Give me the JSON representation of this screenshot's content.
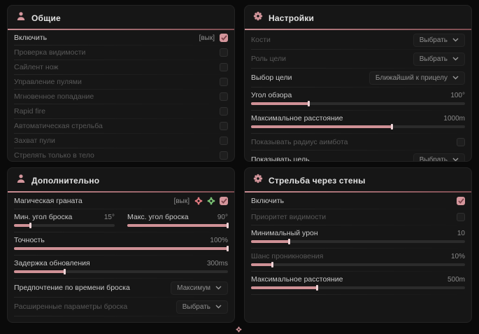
{
  "colors": {
    "accent": "#d4969c",
    "panel_bg": "#161616",
    "page_bg": "#0a0a0a",
    "green_icon": "#7cc576",
    "red_icon": "#e57b82"
  },
  "panels": {
    "general": {
      "title": "Общие",
      "icon": "users-icon",
      "rows": [
        {
          "label": "Включить",
          "hint": "[вык]",
          "checked": true
        },
        {
          "label": "Проверка видимости",
          "checked": false
        },
        {
          "label": "Сайлент нож",
          "checked": false
        },
        {
          "label": "Управление пулями",
          "checked": false
        },
        {
          "label": "Мгновенное попадание",
          "checked": false
        },
        {
          "label": "Rapid fire",
          "checked": false
        },
        {
          "label": "Автоматическая стрельба",
          "checked": false
        },
        {
          "label": "Захват пули",
          "checked": false
        },
        {
          "label": "Стрелять только в тело",
          "checked": false
        }
      ]
    },
    "settings": {
      "title": "Настройки",
      "icon": "gear-icon",
      "rows": [
        {
          "label": "Кости",
          "value": "Выбрать"
        },
        {
          "label": "Роль цели",
          "value": "Выбрать"
        },
        {
          "label": "Выбор цели",
          "value": "Ближайший к прицелу"
        },
        {
          "label": "Угол обзора",
          "value": "100°",
          "pct": 27
        },
        {
          "label": "Максимальное расстояние",
          "value": "1000m",
          "pct": 66
        },
        {
          "label": "Показывать радиус аимбота",
          "checked": false
        },
        {
          "label": "Показывать цель",
          "value": "Выбрать"
        }
      ]
    },
    "additional": {
      "title": "Дополнительно",
      "icon": "users-icon",
      "rows": [
        {
          "label": "Магическая граната",
          "hint": "[вык]",
          "checked": true,
          "icons": [
            "red-flower-icon",
            "green-flower-icon"
          ]
        },
        {
          "label": "Мин. угол броска",
          "value": "15°",
          "pct": 17
        },
        {
          "label": "Макс. угол броска",
          "value": "90°",
          "pct": 100
        },
        {
          "label": "Точность",
          "value": "100%",
          "pct": 100
        },
        {
          "label": "Задержка обновления",
          "value": "300ms",
          "pct": 24
        },
        {
          "label": "Предпочтение по времени броска",
          "value": "Максимум"
        },
        {
          "label": "Расширенные параметры броска",
          "value": "Выбрать"
        }
      ]
    },
    "walls": {
      "title": "Стрельба через стены",
      "icon": "gear-icon",
      "rows": [
        {
          "label": "Включить",
          "checked": true
        },
        {
          "label": "Приоритет видимости",
          "checked": false
        },
        {
          "label": "Минимальный урон",
          "value": "10",
          "pct": 18
        },
        {
          "label": "Шанс проникновения",
          "value": "10%",
          "pct": 10
        },
        {
          "label": "Максимальное расстояние",
          "value": "500m",
          "pct": 31
        }
      ]
    }
  }
}
